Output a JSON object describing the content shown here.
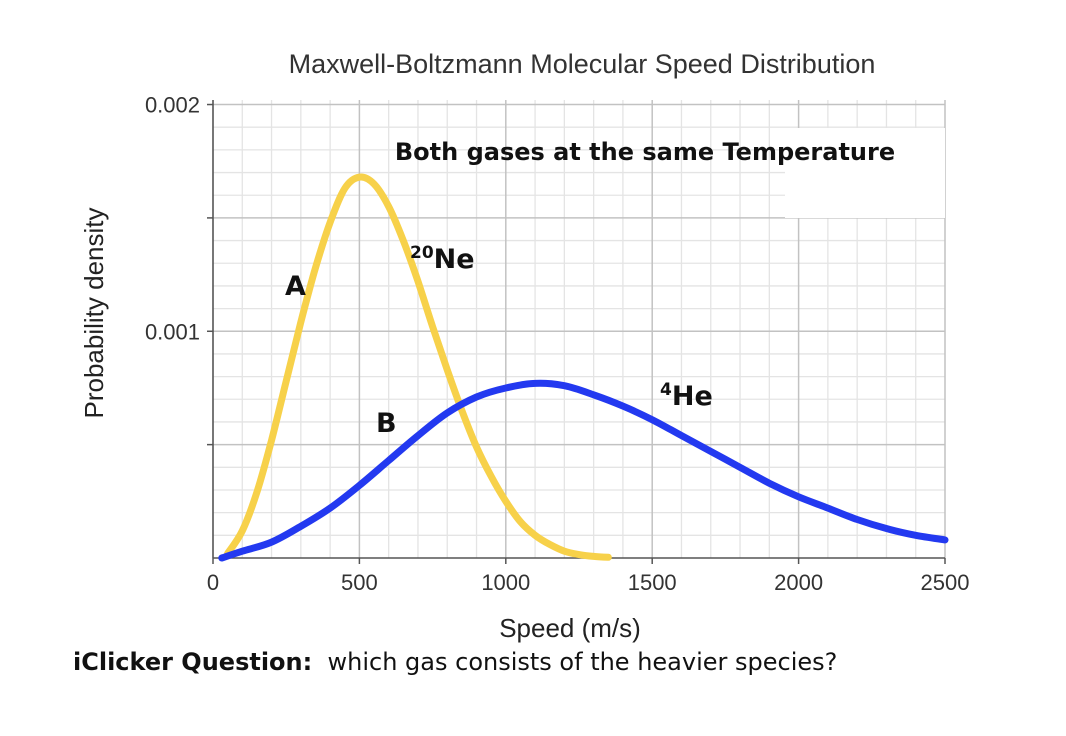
{
  "chart_data": {
    "type": "line",
    "title": "Maxwell-Boltzmann Molecular Speed Distribution",
    "xlabel": "Speed (m/s)",
    "ylabel": "Probability density",
    "xlim": [
      0,
      2500
    ],
    "ylim": [
      0,
      0.00202
    ],
    "x_ticks": [
      "0",
      "500",
      "1000",
      "1500",
      "2000",
      "2500"
    ],
    "y_ticks": [
      "0.001",
      "0.002"
    ],
    "grid": true,
    "annotation": "Both gases at the same Temperature",
    "series": [
      {
        "label": "A",
        "species_mass": "20",
        "species_symbol": "Ne",
        "color": "#f7d14a",
        "points": [
          [
            50,
            2e-05
          ],
          [
            100,
            0.00012
          ],
          [
            150,
            0.00029
          ],
          [
            200,
            0.00052
          ],
          [
            250,
            0.00078
          ],
          [
            300,
            0.00104
          ],
          [
            350,
            0.00128
          ],
          [
            400,
            0.00148
          ],
          [
            450,
            0.00163
          ],
          [
            500,
            0.00168
          ],
          [
            550,
            0.00165
          ],
          [
            600,
            0.00155
          ],
          [
            650,
            0.0014
          ],
          [
            700,
            0.00122
          ],
          [
            750,
            0.00102
          ],
          [
            800,
            0.00083
          ],
          [
            850,
            0.00065
          ],
          [
            900,
            0.00049
          ],
          [
            950,
            0.00036
          ],
          [
            1000,
            0.00025
          ],
          [
            1050,
            0.00016
          ],
          [
            1100,
            0.0001
          ],
          [
            1150,
            6e-05
          ],
          [
            1200,
            3e-05
          ],
          [
            1250,
            1.5e-05
          ],
          [
            1300,
            7e-06
          ],
          [
            1350,
            3e-06
          ]
        ]
      },
      {
        "label": "B",
        "species_mass": "4",
        "species_symbol": "He",
        "color": "#2339f0",
        "points": [
          [
            30,
            0.0
          ],
          [
            100,
            3e-05
          ],
          [
            200,
            7e-05
          ],
          [
            300,
            0.00014
          ],
          [
            400,
            0.00022
          ],
          [
            500,
            0.00032
          ],
          [
            600,
            0.00043
          ],
          [
            700,
            0.00054
          ],
          [
            800,
            0.00064
          ],
          [
            900,
            0.00071
          ],
          [
            1000,
            0.00075
          ],
          [
            1100,
            0.00077
          ],
          [
            1200,
            0.00076
          ],
          [
            1300,
            0.00072
          ],
          [
            1400,
            0.00067
          ],
          [
            1500,
            0.00061
          ],
          [
            1600,
            0.00054
          ],
          [
            1700,
            0.00047
          ],
          [
            1800,
            0.0004
          ],
          [
            1900,
            0.00033
          ],
          [
            2000,
            0.00027
          ],
          [
            2100,
            0.00022
          ],
          [
            2200,
            0.00017
          ],
          [
            2300,
            0.00013
          ],
          [
            2400,
            0.0001
          ],
          [
            2500,
            8e-05
          ]
        ]
      }
    ]
  },
  "question": {
    "prefix": "iClicker Question:",
    "text": "which gas consists of the heavier species?"
  }
}
